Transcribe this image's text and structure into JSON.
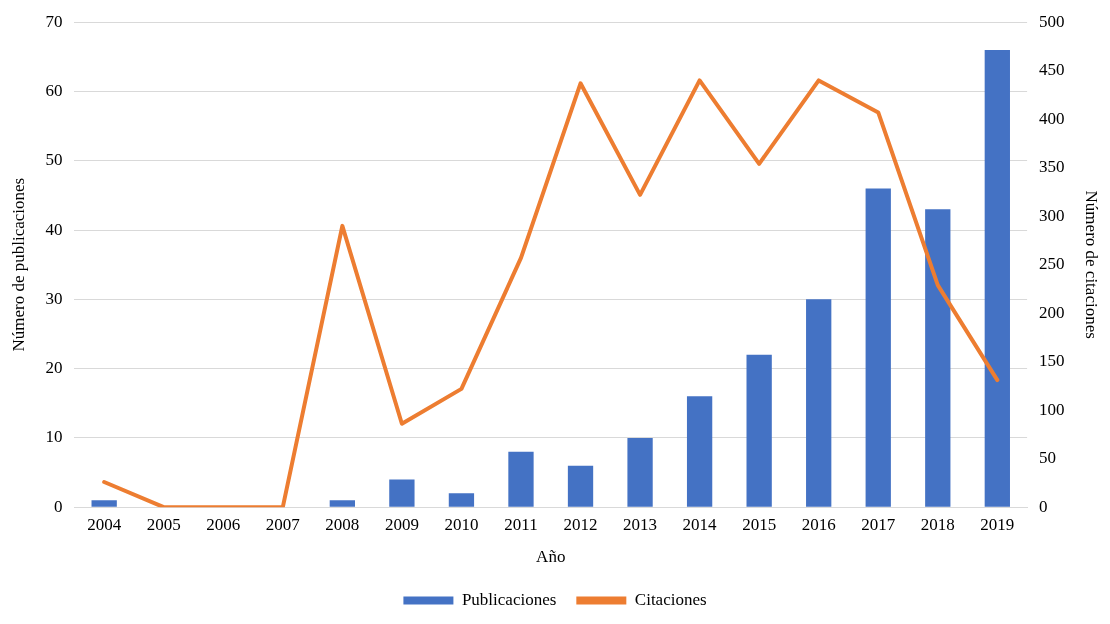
{
  "chart_data": {
    "type": "bar",
    "categories": [
      "2004",
      "2005",
      "2006",
      "2007",
      "2008",
      "2009",
      "2010",
      "2011",
      "2012",
      "2013",
      "2014",
      "2015",
      "2016",
      "2017",
      "2018",
      "2019"
    ],
    "xlabel": "Año",
    "ylabel": "Número de publicaciones",
    "y2label": "Número de citaciones",
    "series": [
      {
        "name": "Publicaciones",
        "color": "#4472c4",
        "values": [
          1,
          0,
          0,
          0,
          1,
          4,
          2,
          8,
          6,
          10,
          16,
          22,
          30,
          46,
          43,
          66
        ]
      },
      {
        "name": "Citaciones",
        "type": "line",
        "axis": "y2",
        "color": "#ed7d31",
        "values": [
          26,
          0,
          0,
          0,
          290,
          86,
          122,
          257,
          437,
          322,
          440,
          354,
          440,
          407,
          229,
          131
        ]
      }
    ],
    "ylim": [
      0,
      70
    ],
    "yticks": [
      0,
      10,
      20,
      30,
      40,
      50,
      60,
      70
    ],
    "y2lim": [
      0,
      500
    ],
    "y2ticks": [
      0,
      50,
      100,
      150,
      200,
      250,
      300,
      350,
      400,
      450,
      500
    ],
    "grid": "y",
    "legend": "bottom",
    "marker": "none",
    "line_style": "solid"
  }
}
